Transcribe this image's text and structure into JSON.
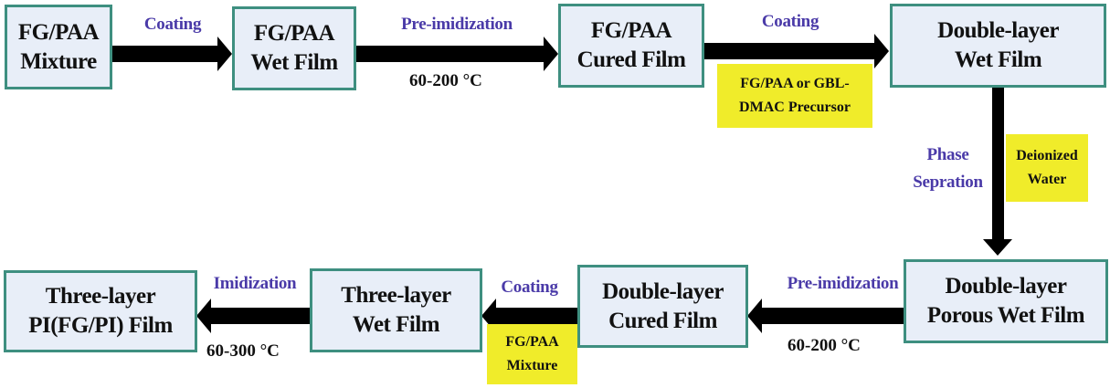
{
  "colors": {
    "box_fill": "#e8eef8",
    "box_border": "#3e8f80",
    "label": "#4a3aa8",
    "highlight": "#f0ec2a",
    "arrow": "#000000"
  },
  "nodes": [
    {
      "id": "fg-paa-mixture",
      "text": "FG/PAA\nMixture"
    },
    {
      "id": "fg-paa-wet-film",
      "text": "FG/PAA\nWet Film"
    },
    {
      "id": "fg-paa-cured-film",
      "text": "FG/PAA\nCured Film"
    },
    {
      "id": "double-layer-wet-film",
      "text": "Double-layer\nWet Film"
    },
    {
      "id": "double-layer-porous-wet-film",
      "text": "Double-layer\nPorous Wet Film"
    },
    {
      "id": "double-layer-cured-film",
      "text": "Double-layer\nCured Film"
    },
    {
      "id": "three-layer-wet-film",
      "text": "Three-layer\nWet Film"
    },
    {
      "id": "three-layer-pi-film",
      "text": "Three-layer\nPI(FG/PI) Film"
    }
  ],
  "edges": [
    {
      "from": "fg-paa-mixture",
      "to": "fg-paa-wet-film",
      "label": "Coating"
    },
    {
      "from": "fg-paa-wet-film",
      "to": "fg-paa-cured-film",
      "label": "Pre-imidization",
      "condition": "60-200 °C"
    },
    {
      "from": "fg-paa-cured-film",
      "to": "double-layer-wet-film",
      "label": "Coating",
      "material": "FG/PAA or GBL-\nDMAC Precursor"
    },
    {
      "from": "double-layer-wet-film",
      "to": "double-layer-porous-wet-film",
      "label": "Phase\nSepration",
      "material": "Deionized\nWater"
    },
    {
      "from": "double-layer-porous-wet-film",
      "to": "double-layer-cured-film",
      "label": "Pre-imidization",
      "condition": "60-200 °C"
    },
    {
      "from": "double-layer-cured-film",
      "to": "three-layer-wet-film",
      "label": "Coating",
      "material": "FG/PAA\nMixture"
    },
    {
      "from": "three-layer-wet-film",
      "to": "three-layer-pi-film",
      "label": "Imidization",
      "condition": "60-300 °C"
    }
  ]
}
